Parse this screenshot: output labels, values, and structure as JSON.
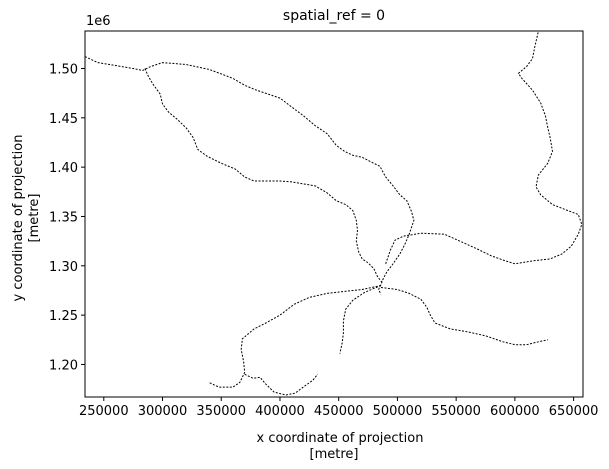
{
  "chart_data": {
    "type": "line",
    "title": "spatial_ref = 0",
    "xlabel": "x coordinate of projection",
    "xunit": "[metre]",
    "ylabel": "y coordinate of projection",
    "yunit": "[metre]",
    "y_offset_label": "1e6",
    "xlim": [
      234000,
      658000
    ],
    "ylim": [
      1167000,
      1538000
    ],
    "xticks": [
      250000,
      300000,
      350000,
      400000,
      450000,
      500000,
      550000,
      600000,
      650000
    ],
    "xtick_labels": [
      "250000",
      "300000",
      "350000",
      "400000",
      "450000",
      "500000",
      "550000",
      "600000",
      "650000"
    ],
    "yticks": [
      1200000,
      1250000,
      1300000,
      1350000,
      1400000,
      1450000,
      1500000
    ],
    "ytick_labels": [
      "1.20",
      "1.25",
      "1.30",
      "1.35",
      "1.40",
      "1.45",
      "1.50"
    ],
    "grid": false,
    "line_color": "#000000",
    "series": [
      {
        "points": [
          [
            234000,
            1512000
          ],
          [
            245000,
            1506000
          ],
          [
            260000,
            1503000
          ],
          [
            275000,
            1500000
          ],
          [
            283000,
            1498000
          ],
          [
            290000,
            1502000
          ],
          [
            300000,
            1506000
          ],
          [
            320000,
            1504000
          ],
          [
            340000,
            1499000
          ],
          [
            360000,
            1490000
          ],
          [
            370000,
            1483000
          ],
          [
            380000,
            1478000
          ],
          [
            390000,
            1474000
          ],
          [
            400000,
            1470000
          ],
          [
            410000,
            1461000
          ],
          [
            420000,
            1452000
          ],
          [
            430000,
            1442000
          ],
          [
            440000,
            1434000
          ],
          [
            448000,
            1422000
          ],
          [
            455000,
            1416000
          ],
          [
            462000,
            1412000
          ],
          [
            470000,
            1410000
          ],
          [
            478000,
            1405000
          ],
          [
            485000,
            1401000
          ],
          [
            490000,
            1390000
          ],
          [
            497000,
            1380000
          ],
          [
            502000,
            1372000
          ],
          [
            508000,
            1366000
          ],
          [
            512000,
            1355000
          ],
          [
            514000,
            1346000
          ],
          [
            510000,
            1332000
          ],
          [
            506000,
            1321000
          ],
          [
            502000,
            1312000
          ],
          [
            498000,
            1305000
          ],
          [
            495000,
            1300000
          ],
          [
            491000,
            1294000
          ],
          [
            488000,
            1287000
          ],
          [
            486000,
            1281000
          ],
          [
            484000,
            1276000
          ],
          [
            486000,
            1271000
          ]
        ]
      },
      {
        "points": [
          [
            285000,
            1500000
          ],
          [
            288000,
            1492000
          ],
          [
            292000,
            1484000
          ],
          [
            298000,
            1474000
          ],
          [
            300000,
            1464000
          ],
          [
            305000,
            1456000
          ],
          [
            312000,
            1449000
          ],
          [
            320000,
            1440000
          ],
          [
            326000,
            1430000
          ],
          [
            330000,
            1418000
          ],
          [
            338000,
            1411000
          ],
          [
            350000,
            1404000
          ],
          [
            362000,
            1398000
          ],
          [
            370000,
            1390000
          ],
          [
            378000,
            1386000
          ],
          [
            390000,
            1386000
          ],
          [
            400000,
            1386000
          ],
          [
            410000,
            1385000
          ],
          [
            420000,
            1383000
          ],
          [
            430000,
            1381000
          ],
          [
            440000,
            1374000
          ],
          [
            448000,
            1366000
          ],
          [
            456000,
            1362000
          ],
          [
            462000,
            1356000
          ],
          [
            465000,
            1346000
          ],
          [
            466000,
            1336000
          ],
          [
            465000,
            1325000
          ],
          [
            467000,
            1314000
          ],
          [
            470000,
            1307000
          ],
          [
            475000,
            1303000
          ],
          [
            480000,
            1297000
          ],
          [
            483000,
            1289000
          ],
          [
            487000,
            1283000
          ]
        ]
      },
      {
        "points": [
          [
            490000,
            1302000
          ],
          [
            494000,
            1316000
          ],
          [
            498000,
            1326000
          ],
          [
            505000,
            1330000
          ],
          [
            520000,
            1333000
          ],
          [
            540000,
            1332000
          ],
          [
            555000,
            1324000
          ],
          [
            568000,
            1317000
          ],
          [
            580000,
            1310000
          ],
          [
            592000,
            1305000
          ],
          [
            600000,
            1302000
          ],
          [
            615000,
            1305000
          ],
          [
            630000,
            1307000
          ],
          [
            640000,
            1312000
          ],
          [
            648000,
            1320000
          ],
          [
            654000,
            1332000
          ],
          [
            657000,
            1342000
          ],
          [
            654000,
            1352000
          ],
          [
            645000,
            1356000
          ],
          [
            632000,
            1362000
          ],
          [
            622000,
            1372000
          ],
          [
            618000,
            1380000
          ],
          [
            620000,
            1392000
          ],
          [
            628000,
            1404000
          ],
          [
            632000,
            1416000
          ],
          [
            630000,
            1430000
          ],
          [
            628000,
            1440000
          ],
          [
            626000,
            1452000
          ],
          [
            622000,
            1465000
          ],
          [
            615000,
            1478000
          ],
          [
            606000,
            1490000
          ],
          [
            603000,
            1495000
          ],
          [
            610000,
            1502000
          ],
          [
            615000,
            1510000
          ],
          [
            617000,
            1522000
          ],
          [
            620000,
            1538000
          ]
        ]
      },
      {
        "points": [
          [
            486000,
            1280000
          ],
          [
            470000,
            1276000
          ],
          [
            455000,
            1274000
          ],
          [
            440000,
            1272000
          ],
          [
            425000,
            1268000
          ],
          [
            412000,
            1261000
          ],
          [
            400000,
            1250000
          ],
          [
            388000,
            1242000
          ],
          [
            378000,
            1236000
          ],
          [
            368000,
            1226000
          ],
          [
            367000,
            1215000
          ],
          [
            369000,
            1203000
          ],
          [
            370000,
            1192000
          ],
          [
            366000,
            1182000
          ],
          [
            360000,
            1177000
          ],
          [
            348000,
            1177000
          ],
          [
            339000,
            1182000
          ]
        ]
      },
      {
        "points": [
          [
            486000,
            1280000
          ],
          [
            472000,
            1273000
          ],
          [
            462000,
            1265000
          ],
          [
            456000,
            1256000
          ],
          [
            454000,
            1244000
          ],
          [
            454000,
            1232000
          ],
          [
            453000,
            1222000
          ],
          [
            451000,
            1211000
          ]
        ]
      },
      {
        "points": [
          [
            486000,
            1278000
          ],
          [
            500000,
            1276000
          ],
          [
            510000,
            1272000
          ],
          [
            520000,
            1266000
          ],
          [
            525000,
            1258000
          ],
          [
            528000,
            1250000
          ],
          [
            532000,
            1242000
          ],
          [
            545000,
            1236000
          ],
          [
            560000,
            1233000
          ],
          [
            575000,
            1229000
          ],
          [
            590000,
            1223000
          ],
          [
            600000,
            1220000
          ],
          [
            610000,
            1220000
          ],
          [
            620000,
            1223000
          ],
          [
            628000,
            1225000
          ]
        ]
      },
      {
        "points": [
          [
            370000,
            1190000
          ],
          [
            377000,
            1186000
          ],
          [
            383000,
            1187000
          ],
          [
            388000,
            1180000
          ],
          [
            395000,
            1172000
          ],
          [
            405000,
            1169000
          ],
          [
            413000,
            1171000
          ],
          [
            421000,
            1178000
          ],
          [
            428000,
            1184000
          ],
          [
            432000,
            1190000
          ]
        ]
      }
    ]
  }
}
